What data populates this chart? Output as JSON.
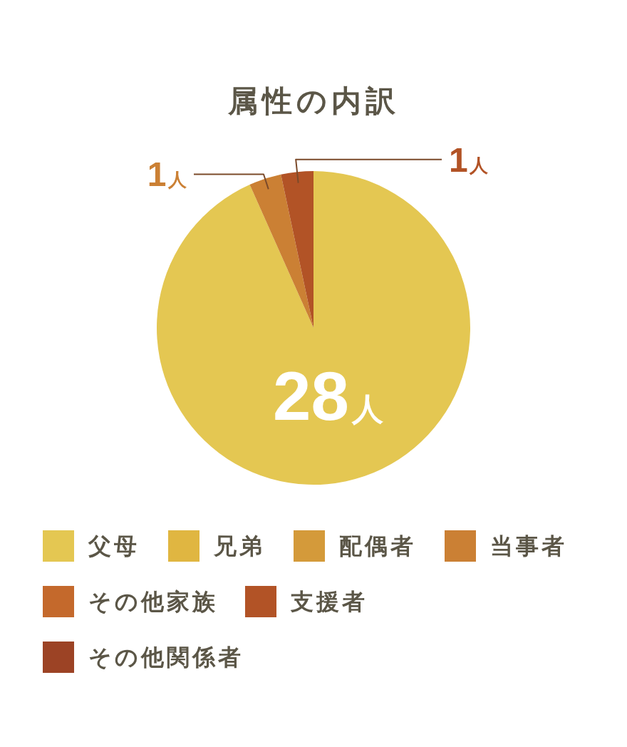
{
  "chart_data": {
    "type": "pie",
    "title": "属性の内訳",
    "categories": [
      "父母",
      "兄弟",
      "配偶者",
      "当事者",
      "その他家族",
      "支援者",
      "その他関係者"
    ],
    "values": [
      28,
      0,
      0,
      1,
      0,
      1,
      0
    ],
    "colors": [
      "#e4c752",
      "#e0b641",
      "#d49a3a",
      "#cb8034",
      "#c4692c",
      "#b25326",
      "#9c4325"
    ],
    "value_labels": [
      "28人",
      null,
      null,
      "1人",
      null,
      "1人",
      null
    ],
    "legend": "bottom"
  }
}
